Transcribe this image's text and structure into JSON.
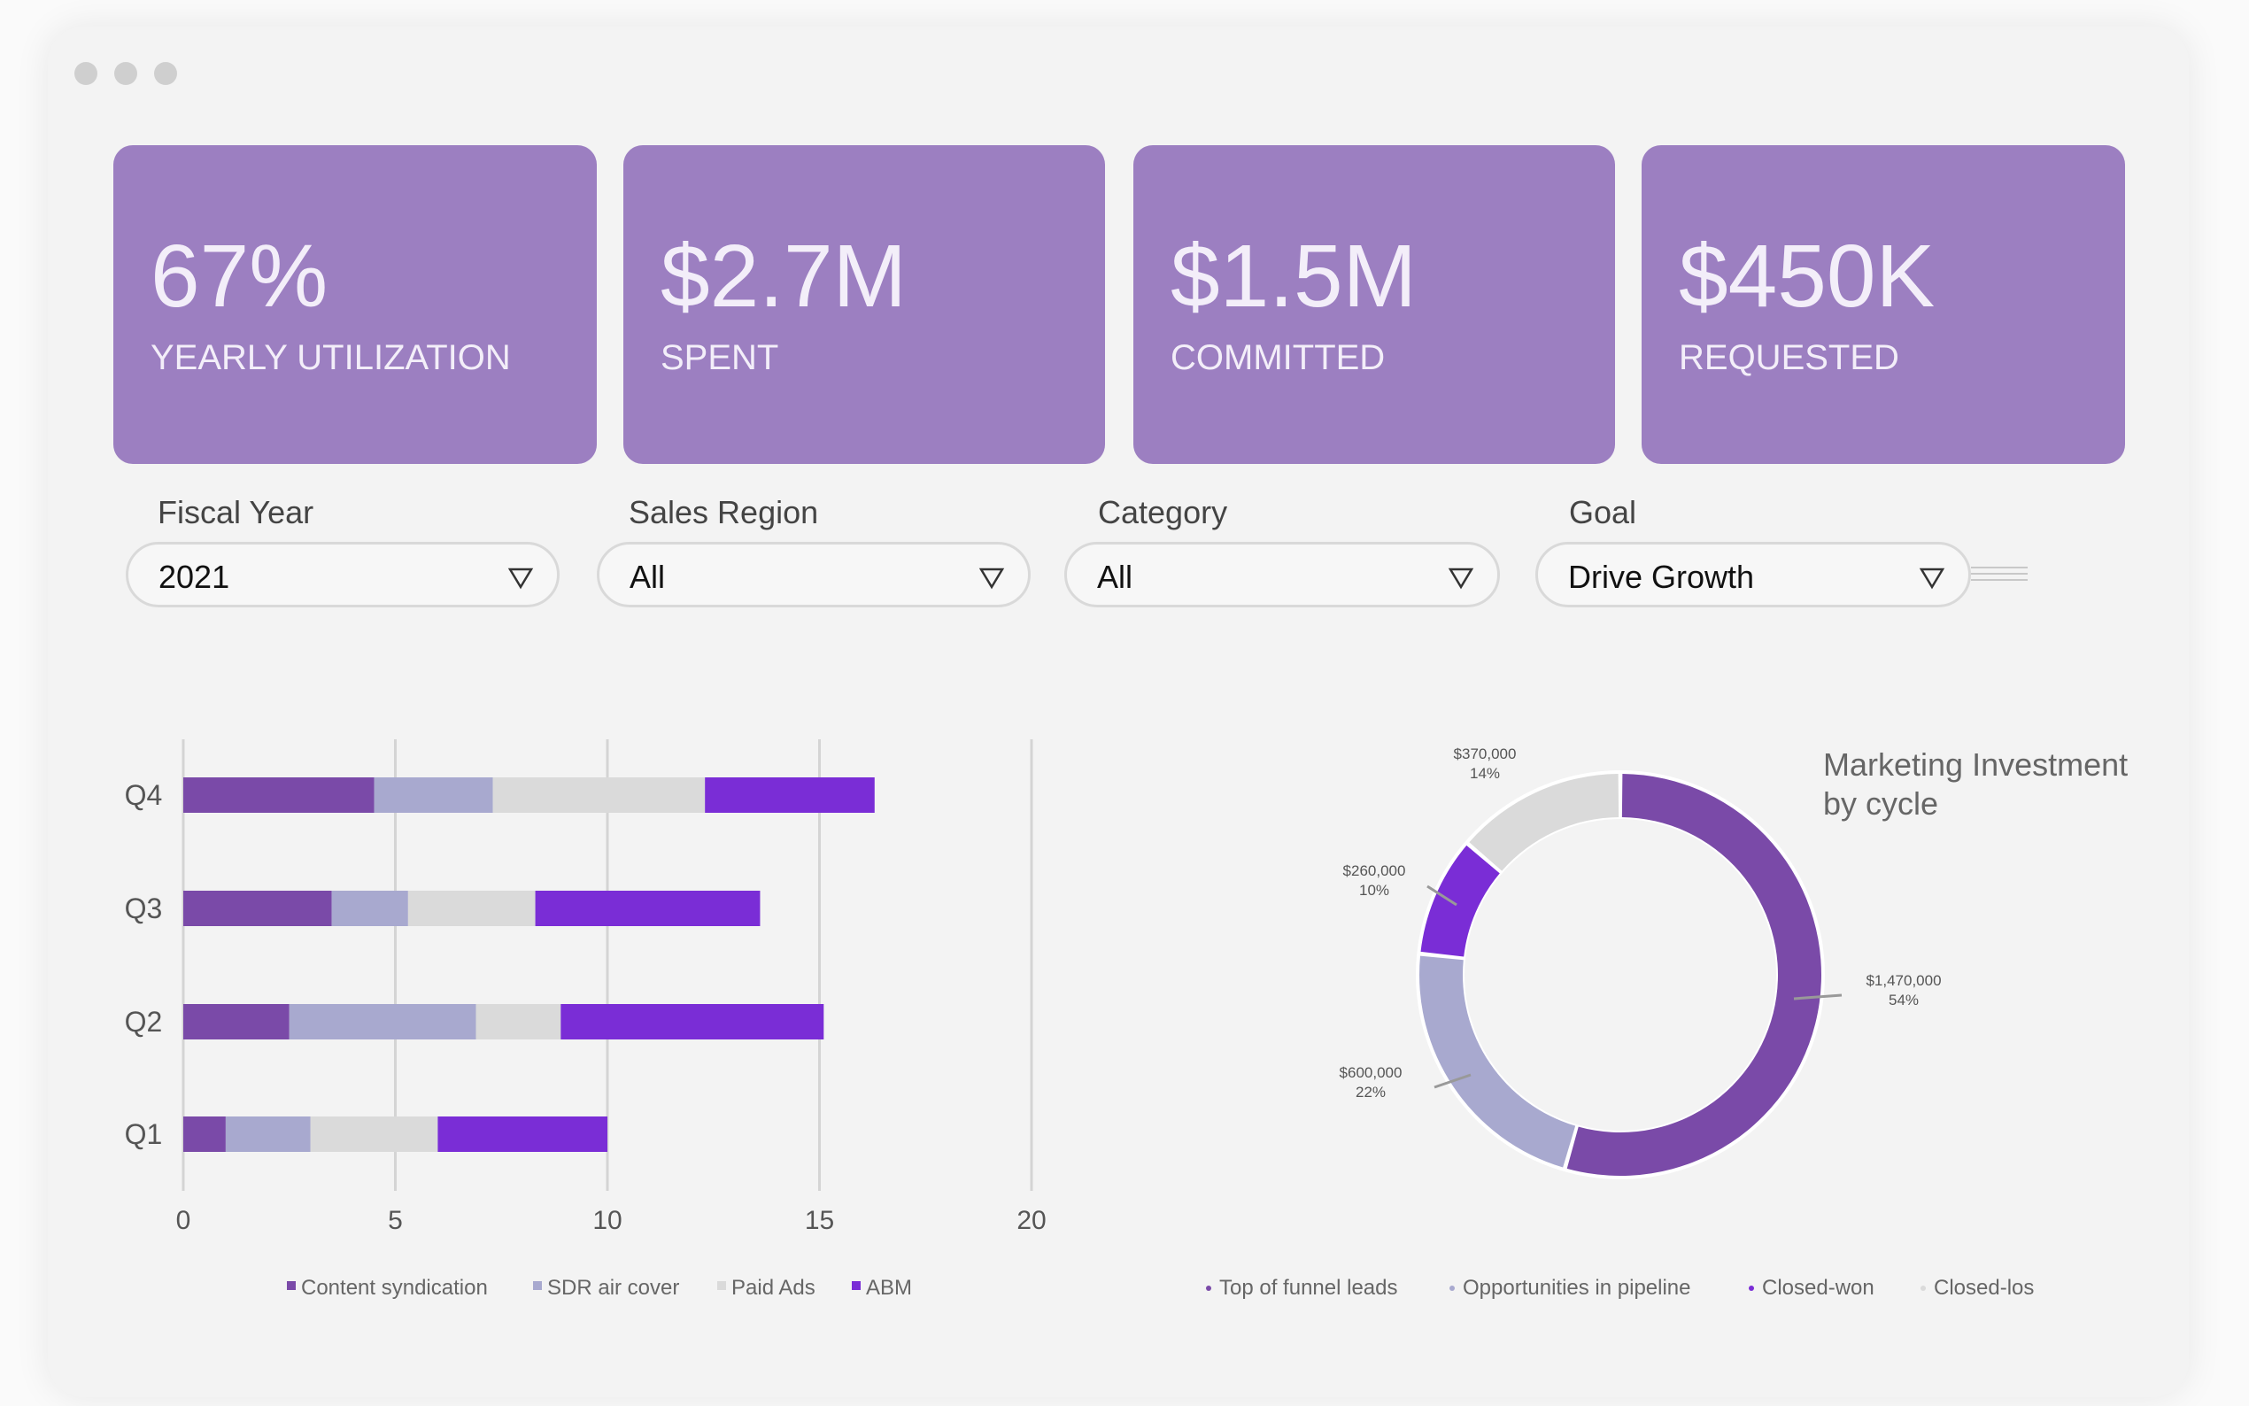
{
  "kpis": [
    {
      "value": "67%",
      "label": "YEARLY UTILIZATION"
    },
    {
      "value": "$2.7M",
      "label": "SPENT"
    },
    {
      "value": "$1.5M",
      "label": "COMMITTED"
    },
    {
      "value": "$450K",
      "label": "REQUESTED"
    }
  ],
  "filters": [
    {
      "label": "Fiscal Year",
      "value": "2021"
    },
    {
      "label": "Sales Region",
      "value": "All"
    },
    {
      "label": "Category",
      "value": "All"
    },
    {
      "label": "Goal",
      "value": "Drive Growth"
    }
  ],
  "icons": {
    "caret": "triangle-down-icon",
    "menu": "hamburger-menu-icon"
  },
  "chart_data": [
    {
      "type": "bar",
      "orientation": "horizontal",
      "stacked": true,
      "categories": [
        "Q4",
        "Q3",
        "Q2",
        "Q1"
      ],
      "series": [
        {
          "name": "Content syndication",
          "values": [
            4.5,
            3.5,
            2.5,
            1
          ],
          "color": "#7a4aa8"
        },
        {
          "name": "SDR air cover",
          "values": [
            2.8,
            1.8,
            4.4,
            2
          ],
          "color": "#a8a9cf"
        },
        {
          "name": "Paid Ads",
          "values": [
            5,
            3,
            2,
            3
          ],
          "color": "#dadada"
        },
        {
          "name": "ABM",
          "values": [
            4,
            5.3,
            6.2,
            4
          ],
          "color": "#7a2dd6"
        }
      ],
      "xlim": [
        0,
        20
      ],
      "xticks": [
        "0",
        "5",
        "10",
        "15",
        "20"
      ],
      "grid": true,
      "legend": "bottom"
    },
    {
      "type": "pie",
      "donut": true,
      "title": "Marketing Investment by cycle",
      "slices": [
        {
          "name": "Top of funnel leads",
          "value": 1470000,
          "value_label": "$1,470,000",
          "percent": "54%",
          "color": "#7a4aa8"
        },
        {
          "name": "Opportunities in pipeline",
          "value": 600000,
          "value_label": "$600,000",
          "percent": "22%",
          "color": "#a8a9cf"
        },
        {
          "name": "Closed-won",
          "value": 260000,
          "value_label": "$260,000",
          "percent": "10%",
          "color": "#7a2dd6"
        },
        {
          "name": "Closed-los",
          "value": 370000,
          "value_label": "$370,000",
          "percent": "14%",
          "color": "#dadada"
        }
      ],
      "legend": "bottom"
    }
  ]
}
